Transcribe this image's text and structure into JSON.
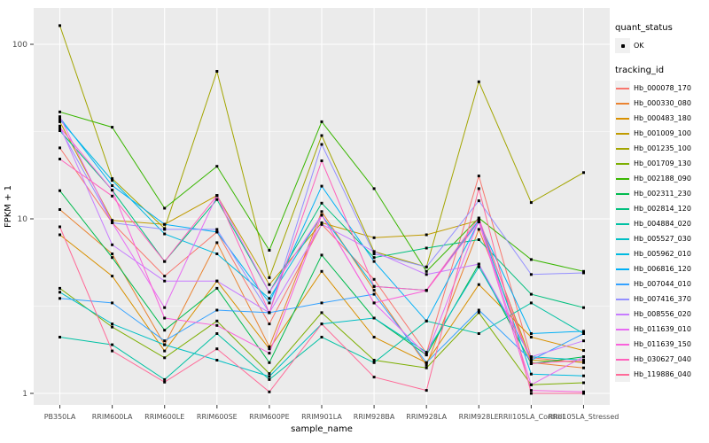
{
  "figure": {
    "background": "#ffffff",
    "panel_background": "#ebebeb",
    "grid_color": "#ffffff",
    "tick_label_color": "#4d4d4d",
    "axis_title_color": "#000000",
    "point_color": "#000000"
  },
  "axes": {
    "x_title": "sample_name",
    "y_title": "FPKM + 1",
    "y_tick_labels": [
      "100",
      "10",
      "1"
    ],
    "y_tick_values": [
      100,
      10,
      1
    ],
    "y_minor_values": [
      31.62,
      3.162
    ]
  },
  "legend": {
    "quant_status_title": "quant_status",
    "quant_status_items": [
      {
        "label": "OK"
      }
    ],
    "tracking_title": "tracking_id"
  },
  "chart_data": {
    "type": "line",
    "title": "",
    "xlabel": "sample_name",
    "ylabel": "FPKM + 1",
    "y_scale": "log10",
    "ylim": [
      0.82,
      160
    ],
    "grid": "on",
    "legend_position": "right",
    "categories": [
      "PB350LA",
      "RRIM600LA",
      "RRIM600LE",
      "RRIM600SE",
      "RRIM600PE",
      "RRIM901LA",
      "RRIM928BA",
      "RRIM928LA",
      "RRIM928LE",
      "RRII105LA_Control",
      "RRII105LA_Stressed"
    ],
    "series": [
      {
        "name": "Hb_000078_170",
        "color": "#F8766D",
        "values": [
          25.5,
          9.5,
          4.7,
          8.4,
          2.5,
          9.3,
          4.5,
          1.7,
          17.6,
          1.6,
          1.5
        ]
      },
      {
        "name": "Hb_000330_080",
        "color": "#EA8331",
        "values": [
          11.3,
          6.3,
          1.9,
          7.3,
          1.85,
          11.0,
          3.9,
          1.45,
          8.7,
          1.5,
          1.4
        ]
      },
      {
        "name": "Hb_000483_180",
        "color": "#D89000",
        "values": [
          8.1,
          4.7,
          1.75,
          4.4,
          1.8,
          5.0,
          2.1,
          1.5,
          4.2,
          2.1,
          1.76
        ]
      },
      {
        "name": "Hb_001009_100",
        "color": "#C09B00",
        "values": [
          36.0,
          9.8,
          9.3,
          13.6,
          4.2,
          9.5,
          7.8,
          8.1,
          9.8,
          1.55,
          1.51
        ]
      },
      {
        "name": "Hb_001235_100",
        "color": "#A3A500",
        "values": [
          128.0,
          17.0,
          8.8,
          70.0,
          4.6,
          30.0,
          6.5,
          5.3,
          61.0,
          12.4,
          18.4
        ]
      },
      {
        "name": "Hb_001709_130",
        "color": "#7CAE00",
        "values": [
          4.0,
          2.4,
          1.6,
          2.6,
          1.3,
          2.9,
          1.55,
          1.4,
          2.9,
          1.12,
          1.15
        ]
      },
      {
        "name": "Hb_002188_090",
        "color": "#39B600",
        "values": [
          41.0,
          33.5,
          11.5,
          20.0,
          6.6,
          36.0,
          14.9,
          5.0,
          10.1,
          5.85,
          5.0
        ]
      },
      {
        "name": "Hb_002311_230",
        "color": "#00BB4E",
        "values": [
          14.5,
          6.0,
          2.3,
          4.0,
          1.5,
          6.2,
          2.7,
          1.66,
          5.5,
          1.48,
          1.62
        ]
      },
      {
        "name": "Hb_002814_120",
        "color": "#00BF7D",
        "values": [
          32.0,
          14.6,
          5.7,
          12.9,
          3.8,
          12.3,
          6.0,
          6.8,
          7.6,
          3.7,
          3.1
        ]
      },
      {
        "name": "Hb_004884_020",
        "color": "#00C1A3",
        "values": [
          2.1,
          1.9,
          1.2,
          2.2,
          1.2,
          2.1,
          1.5,
          2.6,
          2.2,
          3.3,
          2.2
        ]
      },
      {
        "name": "Hb_005527_030",
        "color": "#00BFC4",
        "values": [
          3.8,
          2.5,
          1.9,
          1.55,
          1.25,
          2.5,
          2.7,
          1.72,
          5.3,
          1.62,
          1.55
        ]
      },
      {
        "name": "Hb_005962_010",
        "color": "#00BAE0",
        "values": [
          37.0,
          16.6,
          8.2,
          6.3,
          3.5,
          10.5,
          4.1,
          3.9,
          9.8,
          1.29,
          1.26
        ]
      },
      {
        "name": "Hb_006816_120",
        "color": "#00B0F6",
        "values": [
          38.0,
          15.5,
          9.3,
          8.4,
          3.3,
          15.4,
          5.7,
          2.6,
          9.6,
          2.2,
          2.27
        ]
      },
      {
        "name": "Hb_007044_010",
        "color": "#35A2FF",
        "values": [
          3.5,
          3.3,
          2.0,
          3.0,
          2.9,
          3.3,
          3.7,
          1.5,
          3.0,
          1.55,
          2.2
        ]
      },
      {
        "name": "Hb_007416_370",
        "color": "#9590FF",
        "values": [
          33.0,
          9.5,
          8.7,
          8.7,
          2.9,
          26.7,
          6.3,
          5.3,
          12.7,
          4.8,
          4.9
        ]
      },
      {
        "name": "Hb_008556_020",
        "color": "#C77CFF",
        "values": [
          34.0,
          7.1,
          4.4,
          4.4,
          2.9,
          9.3,
          6.5,
          4.8,
          5.5,
          1.62,
          2.0
        ]
      },
      {
        "name": "Hb_011639_010",
        "color": "#E76BF3",
        "values": [
          38.5,
          9.5,
          3.1,
          13.6,
          3.8,
          10.5,
          3.3,
          1.66,
          9.8,
          1.12,
          1.62
        ]
      },
      {
        "name": "Hb_011639_150",
        "color": "#FA62DB",
        "values": [
          33.5,
          14.6,
          2.7,
          2.45,
          1.7,
          10.5,
          3.3,
          3.88,
          9.6,
          1.04,
          1.02
        ]
      },
      {
        "name": "Hb_030627_040",
        "color": "#FF62BC",
        "values": [
          22.0,
          13.5,
          5.7,
          13.6,
          2.9,
          21.5,
          4.1,
          3.9,
          10.1,
          1.48,
          1.55
        ]
      },
      {
        "name": "Hb_119886_040",
        "color": "#FF6A98",
        "values": [
          9.0,
          1.75,
          1.16,
          1.8,
          1.02,
          2.5,
          1.24,
          1.04,
          14.9,
          1.0,
          1.0
        ]
      }
    ]
  }
}
